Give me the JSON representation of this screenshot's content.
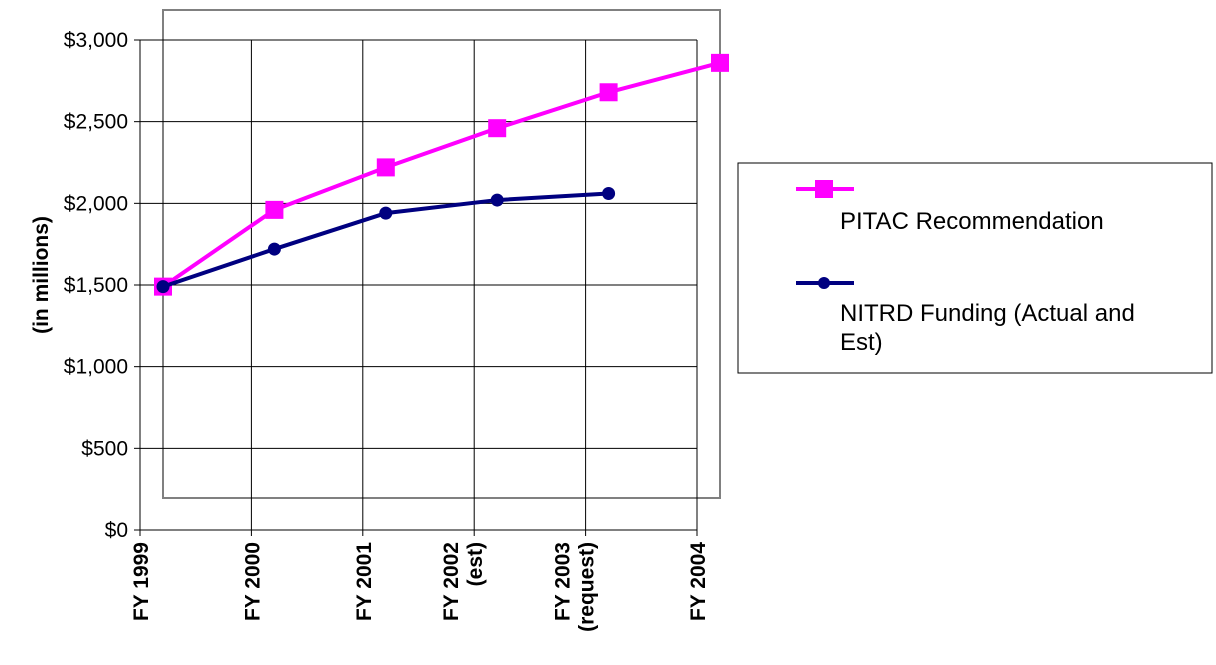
{
  "chart_data": {
    "type": "line",
    "categories": [
      "FY 1999",
      "FY 2000",
      "FY 2001",
      "FY 2002\n(est)",
      "FY 2003\n(request)",
      "FY 2004"
    ],
    "series": [
      {
        "name": "PITAC Recommendation",
        "values": [
          1490,
          1960,
          2220,
          2460,
          2680,
          2860
        ],
        "color": "#ff00ff",
        "marker": "square"
      },
      {
        "name": "NITRD Funding (Actual and Est)",
        "values": [
          1490,
          1720,
          1940,
          2020,
          2060,
          null
        ],
        "color": "#000080",
        "marker": "circle"
      }
    ],
    "ylabel": "(in millions)",
    "ylim": [
      0,
      3000
    ],
    "yticks": [
      0,
      500,
      1000,
      1500,
      2000,
      2500,
      3000
    ],
    "ytick_labels": [
      "$0",
      "$500",
      "$1,000",
      "$1,500",
      "$2,000",
      "$2,500",
      "$3,000"
    ],
    "grid": true,
    "legend_position": "right"
  }
}
